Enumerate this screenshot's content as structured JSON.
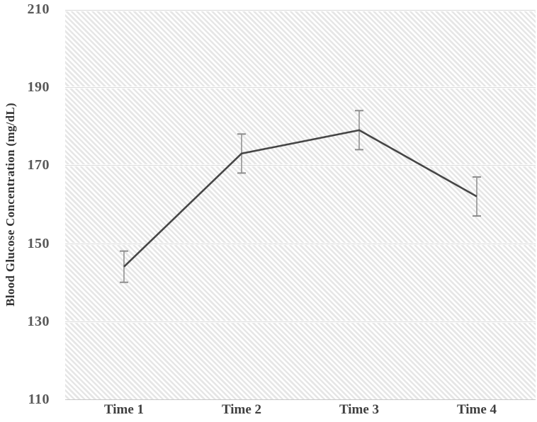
{
  "chart_data": {
    "type": "line",
    "title": "",
    "xlabel": "",
    "ylabel": "Blood Glucose Concentration (mg/dL)",
    "categories": [
      "Time 1",
      "Time 2",
      "Time 3",
      "Time 4"
    ],
    "series": [
      {
        "name": "blood-glucose-concentration",
        "values": [
          144,
          173,
          179,
          162
        ],
        "error_bars": [
          4,
          5,
          5,
          5
        ]
      }
    ],
    "ylim": [
      110,
      210
    ],
    "yticks": [
      210,
      190,
      170,
      150,
      130,
      110
    ],
    "grid": true,
    "legend_position": "none",
    "plot_background": "light diagonal hatch stripes",
    "colors": {
      "series_line": "#464646",
      "error_bar": "#8c8c8c",
      "hatch_stripe": "#e6e6e6",
      "gridline": "#d9d9d9",
      "axis_line": "#c8c8c8",
      "y_tick_label": "#595959",
      "x_tick_label": "#3f3f3f",
      "axis_title": "#333333",
      "background": "#ffffff"
    }
  }
}
